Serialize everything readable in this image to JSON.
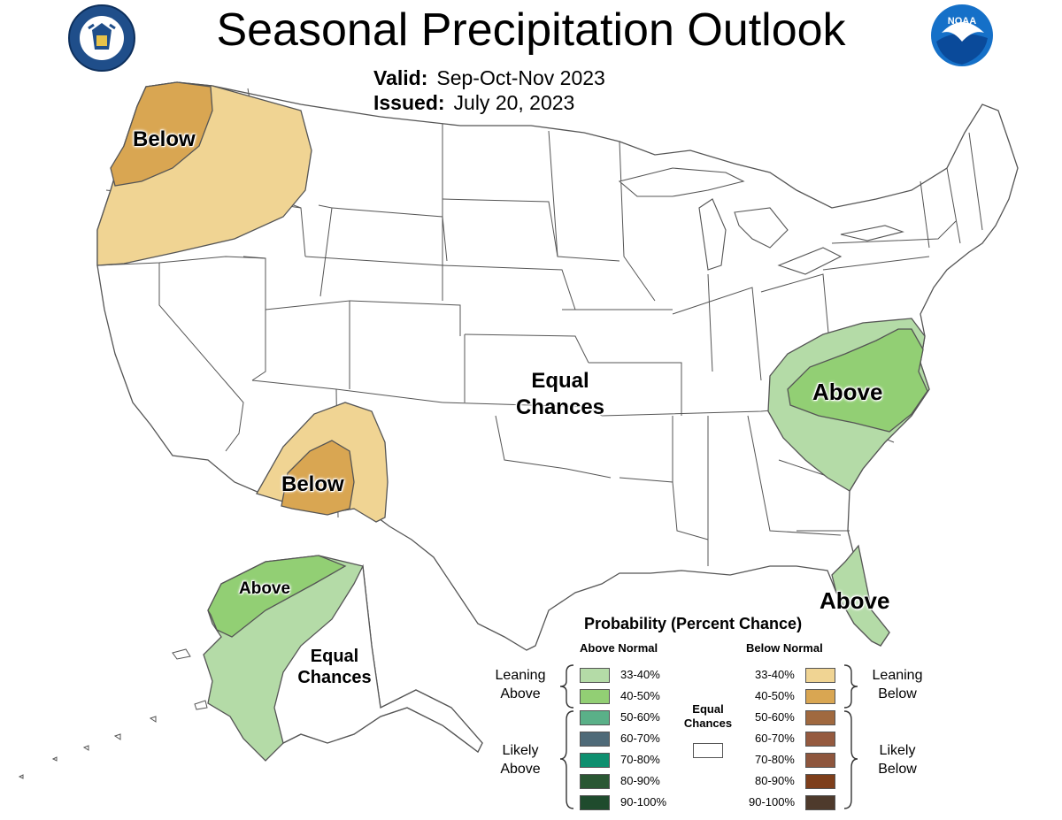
{
  "header": {
    "title": "Seasonal Precipitation Outlook",
    "valid_label": "Valid:",
    "valid_value": "Sep-Oct-Nov 2023",
    "issued_label": "Issued:",
    "issued_value": "July 20, 2023"
  },
  "logos": {
    "left_seal_text": "DEPARTMENT OF COMMERCE · UNITED STATES OF AMERICA",
    "right_logo_text": "NOAA"
  },
  "colors": {
    "above_33_40": "#b4dba7",
    "above_40_50": "#92cf74",
    "above_50_60": "#5ab088",
    "above_60_70": "#4f6a78",
    "above_70_80": "#0e8f6f",
    "above_80_90": "#2a5733",
    "above_90_100": "#1f4b2d",
    "below_33_40": "#f0d493",
    "below_40_50": "#d9a652",
    "below_50_60": "#a0693f",
    "below_60_70": "#955a3f",
    "below_70_80": "#8e563d",
    "below_80_90": "#7e3e1b",
    "below_90_100": "#4e3a2c",
    "border": "#555555"
  },
  "map_labels": {
    "northwest": "Below",
    "southwest": "Below",
    "center_line1": "Equal",
    "center_line2": "Chances",
    "southeast": "Above",
    "florida": "Above",
    "alaska_north": "Above",
    "alaska_center_line1": "Equal",
    "alaska_center_line2": "Chances"
  },
  "legend": {
    "title": "Probability (Percent Chance)",
    "above_header": "Above Normal",
    "below_header": "Below Normal",
    "leaning_above": [
      "Leaning",
      "Above"
    ],
    "likely_above": [
      "Likely",
      "Above"
    ],
    "leaning_below": [
      "Leaning",
      "Below"
    ],
    "likely_below": [
      "Likely",
      "Below"
    ],
    "equal_chances": [
      "Equal",
      "Chances"
    ],
    "ranges": [
      "33-40%",
      "40-50%",
      "50-60%",
      "60-70%",
      "70-80%",
      "80-90%",
      "90-100%"
    ]
  }
}
